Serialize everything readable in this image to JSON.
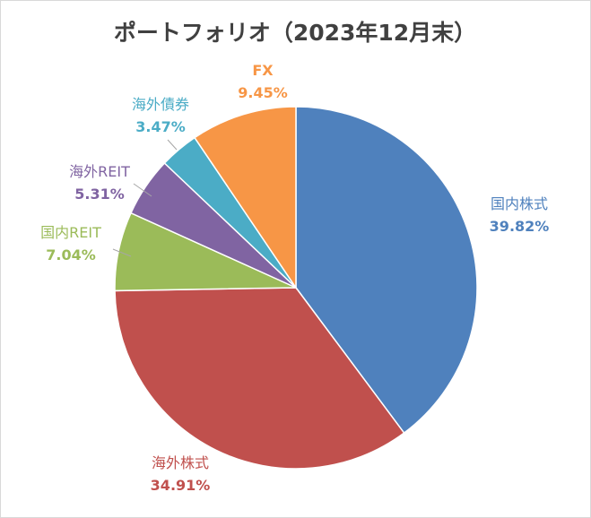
{
  "chart_data": {
    "type": "pie",
    "title": "ポートフォリオ（2023年12月末）",
    "start_angle_deg": 0,
    "direction": "clockwise",
    "slices": [
      {
        "name": "国内株式",
        "value": 39.82,
        "value_label": "39.82%",
        "color": "#4F81BD",
        "label_color": "#4F81BD"
      },
      {
        "name": "海外株式",
        "value": 34.91,
        "value_label": "34.91%",
        "color": "#C0504D",
        "label_color": "#C0504D"
      },
      {
        "name": "国内REIT",
        "value": 7.04,
        "value_label": "7.04%",
        "color": "#9BBB59",
        "label_color": "#9BBB59"
      },
      {
        "name": "海外REIT",
        "value": 5.31,
        "value_label": "5.31%",
        "color": "#8064A2",
        "label_color": "#8064A2"
      },
      {
        "name": "海外債券",
        "value": 3.47,
        "value_label": "3.47%",
        "color": "#4BACC6",
        "label_color": "#4BACC6"
      },
      {
        "name": "FX",
        "value": 9.45,
        "value_label": "9.45%",
        "color": "#F79646",
        "label_color": "#F79646"
      }
    ],
    "legend": "none"
  }
}
